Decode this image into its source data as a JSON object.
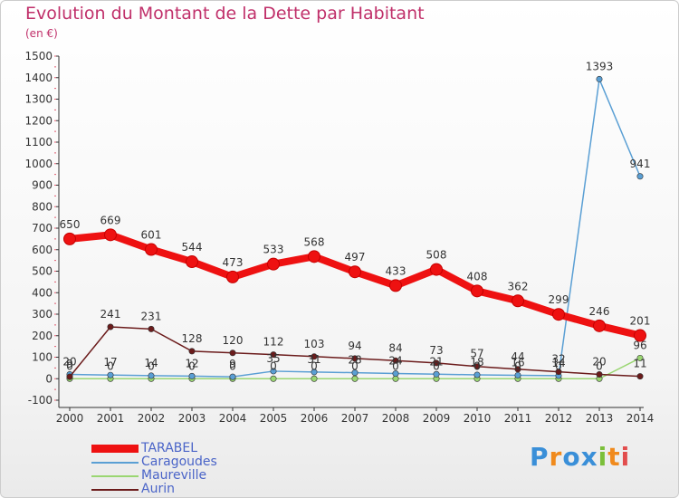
{
  "header": {
    "title": "Evolution du Montant de la Dette par Habitant",
    "subtitle": "(en €)"
  },
  "logo": {
    "text": "Proxiti"
  },
  "chart_data": {
    "type": "line",
    "title": "Evolution du Montant de la Dette par Habitant",
    "subtitle": "(en €)",
    "xlabel": "",
    "ylabel": "",
    "x": [
      2000,
      2001,
      2002,
      2003,
      2004,
      2005,
      2006,
      2007,
      2008,
      2009,
      2010,
      2011,
      2012,
      2013,
      2014
    ],
    "ylim": [
      -100,
      1500
    ],
    "yticks": [
      -100,
      0,
      100,
      200,
      300,
      400,
      500,
      600,
      700,
      800,
      900,
      1000,
      1100,
      1200,
      1300,
      1400,
      1500
    ],
    "grid": false,
    "legend_position": "bottom-left",
    "series": [
      {
        "name": "TARABEL",
        "color": "#ee1111",
        "values": [
          650,
          669,
          601,
          544,
          473,
          533,
          568,
          497,
          433,
          508,
          408,
          362,
          299,
          246,
          201
        ],
        "labels_shown": true
      },
      {
        "name": "Caragoudes",
        "color": "#5a9fd4",
        "values": [
          20,
          17,
          14,
          12,
          9,
          35,
          31,
          28,
          24,
          21,
          18,
          16,
          14,
          1393,
          941
        ],
        "labels_shown": true
      },
      {
        "name": "Maureville",
        "color": "#9ad672",
        "values": [
          0,
          0,
          0,
          0,
          0,
          0,
          0,
          0,
          0,
          0,
          0,
          0,
          0,
          0,
          96
        ],
        "labels_shown": true
      },
      {
        "name": "Aurin",
        "color": "#6b1b1b",
        "values": [
          9,
          241,
          231,
          128,
          120,
          112,
          103,
          94,
          84,
          73,
          57,
          44,
          32,
          20,
          11
        ],
        "labels_shown": true
      }
    ]
  }
}
